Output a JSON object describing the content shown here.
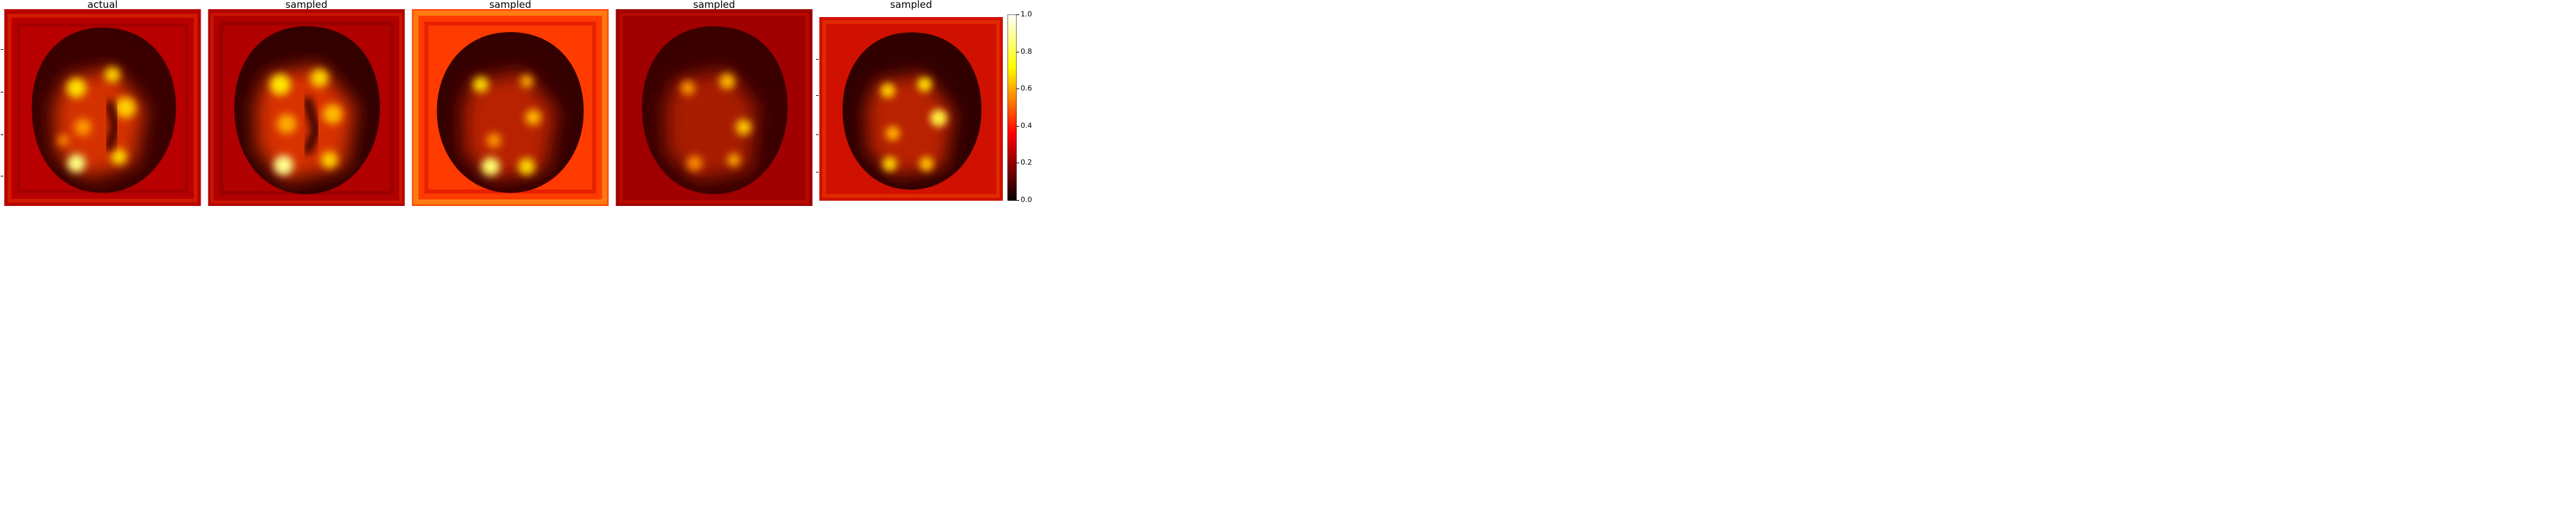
{
  "panels": [
    {
      "title": "actual"
    },
    {
      "title": "sampled"
    },
    {
      "title": "sampled"
    },
    {
      "title": "sampled"
    },
    {
      "title": "sampled"
    }
  ],
  "colormap": "hot",
  "colorbar": {
    "ticks": [
      "0.0",
      "0.2",
      "0.4",
      "0.6",
      "0.8",
      "1.0"
    ]
  }
}
